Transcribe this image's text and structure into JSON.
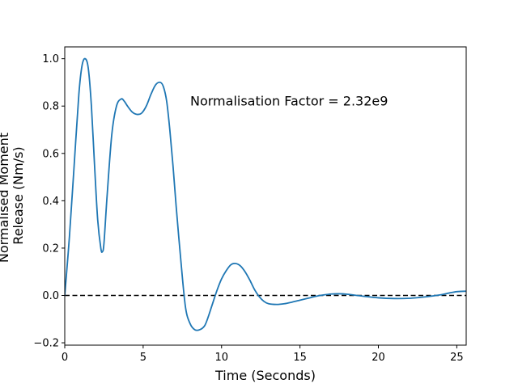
{
  "chart_data": {
    "type": "line",
    "xlabel": "Time (Seconds)",
    "ylabel_lines": [
      "Normalised Moment",
      "Release (Nm/s)"
    ],
    "xlim": [
      0,
      25.6
    ],
    "ylim": [
      -0.21,
      1.05
    ],
    "xticks": [
      0,
      5,
      10,
      15,
      20,
      25
    ],
    "yticks": [
      -0.2,
      0.0,
      0.2,
      0.4,
      0.6,
      0.8,
      1.0
    ],
    "ytick_labels": [
      "−0.2",
      "0.0",
      "0.2",
      "0.4",
      "0.6",
      "0.8",
      "1.0"
    ],
    "grid": false,
    "annotation": {
      "text": "Normalisation Factor = 2.32e9",
      "x": 8.0,
      "y": 0.82
    },
    "reference_line": {
      "y": 0.0,
      "style": "dashed",
      "color": "#000000"
    },
    "series": [
      {
        "color": "#1f77b4",
        "x": [
          0,
          0.3,
          0.6,
          0.9,
          1.1,
          1.3,
          1.5,
          1.7,
          1.9,
          2.1,
          2.3,
          2.4,
          2.5,
          2.7,
          3.0,
          3.3,
          3.6,
          3.8,
          4.0,
          4.3,
          4.6,
          4.9,
          5.2,
          5.5,
          5.8,
          6.1,
          6.3,
          6.5,
          6.7,
          6.9,
          7.1,
          7.4,
          7.7,
          8.0,
          8.3,
          8.6,
          8.9,
          9.1,
          9.4,
          9.7,
          10.0,
          10.3,
          10.6,
          10.9,
          11.2,
          11.5,
          11.8,
          12.1,
          12.4,
          12.7,
          13.0,
          13.5,
          14.0,
          14.5,
          15.0,
          15.5,
          16.0,
          16.5,
          17.0,
          17.5,
          18.0,
          19.0,
          20.0,
          21.0,
          22.0,
          23.0,
          24.0,
          24.5,
          25.0,
          25.6
        ],
        "y": [
          0.0,
          0.25,
          0.55,
          0.85,
          0.97,
          1.0,
          0.96,
          0.8,
          0.55,
          0.32,
          0.2,
          0.185,
          0.22,
          0.42,
          0.68,
          0.8,
          0.83,
          0.82,
          0.8,
          0.775,
          0.765,
          0.77,
          0.8,
          0.85,
          0.89,
          0.9,
          0.88,
          0.82,
          0.7,
          0.55,
          0.38,
          0.15,
          -0.05,
          -0.12,
          -0.145,
          -0.145,
          -0.13,
          -0.1,
          -0.04,
          0.02,
          0.07,
          0.105,
          0.13,
          0.135,
          0.125,
          0.1,
          0.065,
          0.025,
          -0.005,
          -0.025,
          -0.035,
          -0.038,
          -0.035,
          -0.028,
          -0.02,
          -0.012,
          -0.004,
          0.002,
          0.006,
          0.007,
          0.005,
          -0.003,
          -0.01,
          -0.013,
          -0.012,
          -0.006,
          0.003,
          0.01,
          0.016,
          0.018
        ]
      }
    ]
  }
}
